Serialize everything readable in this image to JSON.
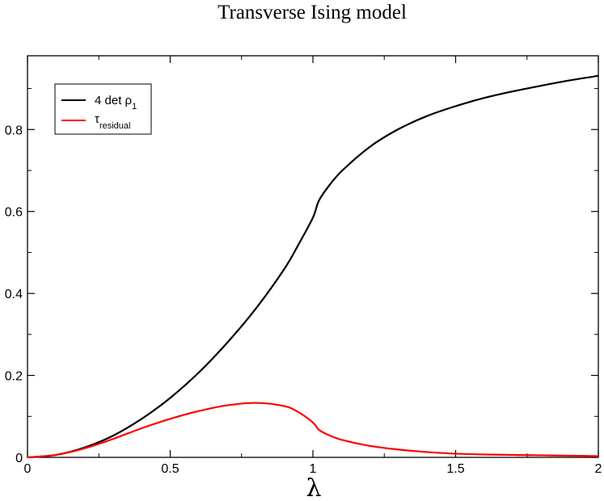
{
  "chart_data": {
    "type": "line",
    "title": "Transverse Ising model",
    "xlabel": "λ",
    "ylabel": "",
    "xlim": [
      0,
      2
    ],
    "ylim": [
      0,
      0.98
    ],
    "x_ticks": [
      0,
      0.5,
      1,
      1.5,
      2
    ],
    "x_tick_labels": [
      "0",
      "0.5",
      "1",
      "1.5",
      "2"
    ],
    "y_ticks": [
      0,
      0.2,
      0.4,
      0.6,
      0.8
    ],
    "y_tick_labels": [
      "0",
      "0.2",
      "0.4",
      "0.6",
      "0.8"
    ],
    "grid": false,
    "legend": {
      "position": "top-left",
      "entries": [
        {
          "main": "4 det ρ",
          "sub": "1",
          "color": "#000000"
        },
        {
          "main": "τ",
          "sub": "residual",
          "color": "#ff0000"
        }
      ]
    },
    "series": [
      {
        "name": "4 det ρ1",
        "color": "#000000",
        "x": [
          0,
          0.1,
          0.2,
          0.3,
          0.4,
          0.5,
          0.6,
          0.7,
          0.8,
          0.9,
          0.95,
          1.0,
          1.02,
          1.05,
          1.1,
          1.2,
          1.3,
          1.4,
          1.5,
          1.6,
          1.7,
          1.8,
          1.9,
          2.0
        ],
        "y": [
          0,
          0.006,
          0.024,
          0.053,
          0.094,
          0.145,
          0.207,
          0.28,
          0.363,
          0.46,
          0.52,
          0.585,
          0.625,
          0.657,
          0.698,
          0.758,
          0.801,
          0.833,
          0.857,
          0.877,
          0.893,
          0.907,
          0.92,
          0.931
        ]
      },
      {
        "name": "τresidual",
        "color": "#ff0000",
        "x": [
          0,
          0.1,
          0.2,
          0.3,
          0.4,
          0.5,
          0.6,
          0.7,
          0.8,
          0.9,
          0.95,
          1.0,
          1.02,
          1.05,
          1.1,
          1.2,
          1.3,
          1.4,
          1.5,
          1.6,
          1.7,
          1.8,
          1.9,
          2.0
        ],
        "y": [
          0,
          0.006,
          0.022,
          0.045,
          0.071,
          0.094,
          0.113,
          0.127,
          0.133,
          0.125,
          0.11,
          0.085,
          0.068,
          0.056,
          0.043,
          0.028,
          0.019,
          0.013,
          0.009,
          0.007,
          0.006,
          0.005,
          0.004,
          0.003
        ]
      }
    ]
  }
}
